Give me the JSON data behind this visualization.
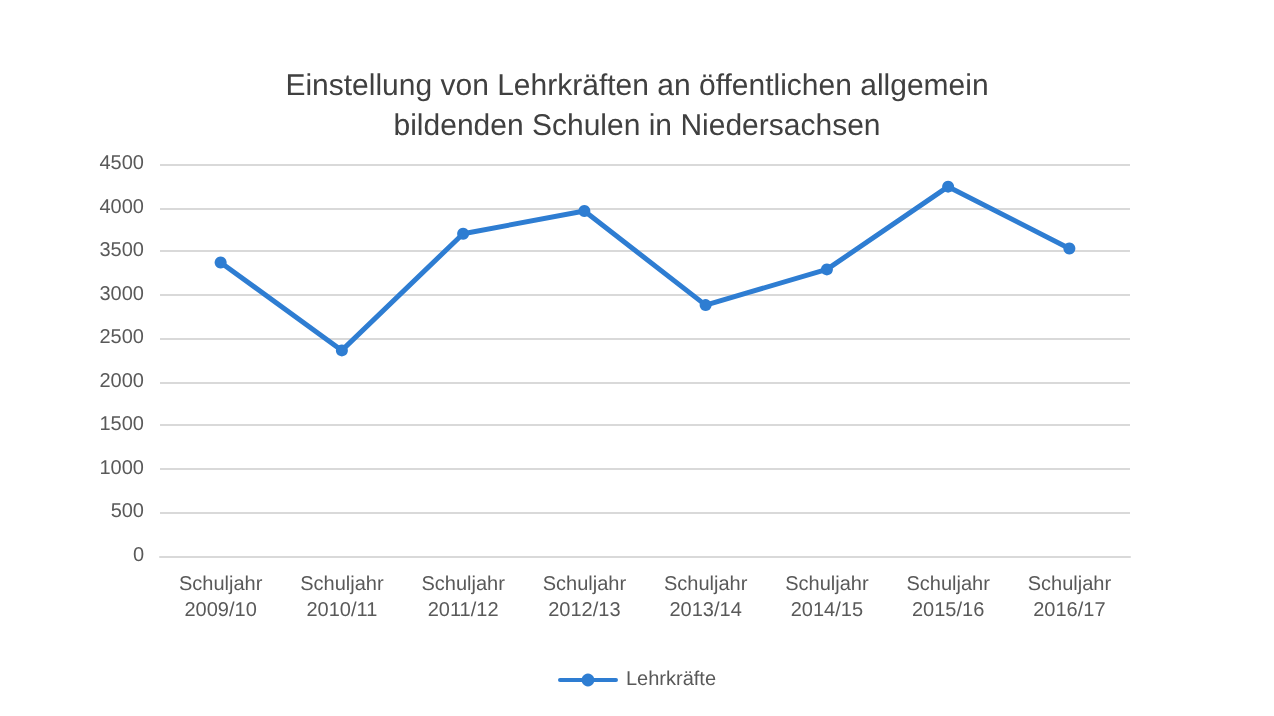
{
  "chart_data": {
    "type": "line",
    "title": "Einstellung von Lehrkräften an öffentlichen allgemein\nbildenden Schulen in Niedersachsen",
    "categories": [
      "Schuljahr\n2009/10",
      "Schuljahr\n2010/11",
      "Schuljahr\n2011/12",
      "Schuljahr\n2012/13",
      "Schuljahr\n2013/14",
      "Schuljahr\n2014/15",
      "Schuljahr\n2015/16",
      "Schuljahr\n2016/17"
    ],
    "series": [
      {
        "name": "Lehrkräfte",
        "color": "#2e7dd2",
        "values": [
          3370,
          2360,
          3700,
          3960,
          2880,
          3290,
          4240,
          3530
        ]
      }
    ],
    "ylim": [
      0,
      4500
    ],
    "yticks": [
      0,
      500,
      1000,
      1500,
      2000,
      2500,
      3000,
      3500,
      4000,
      4500
    ],
    "grid": "y",
    "legend": "bottom",
    "marker": "circle",
    "line_style": "solid"
  }
}
